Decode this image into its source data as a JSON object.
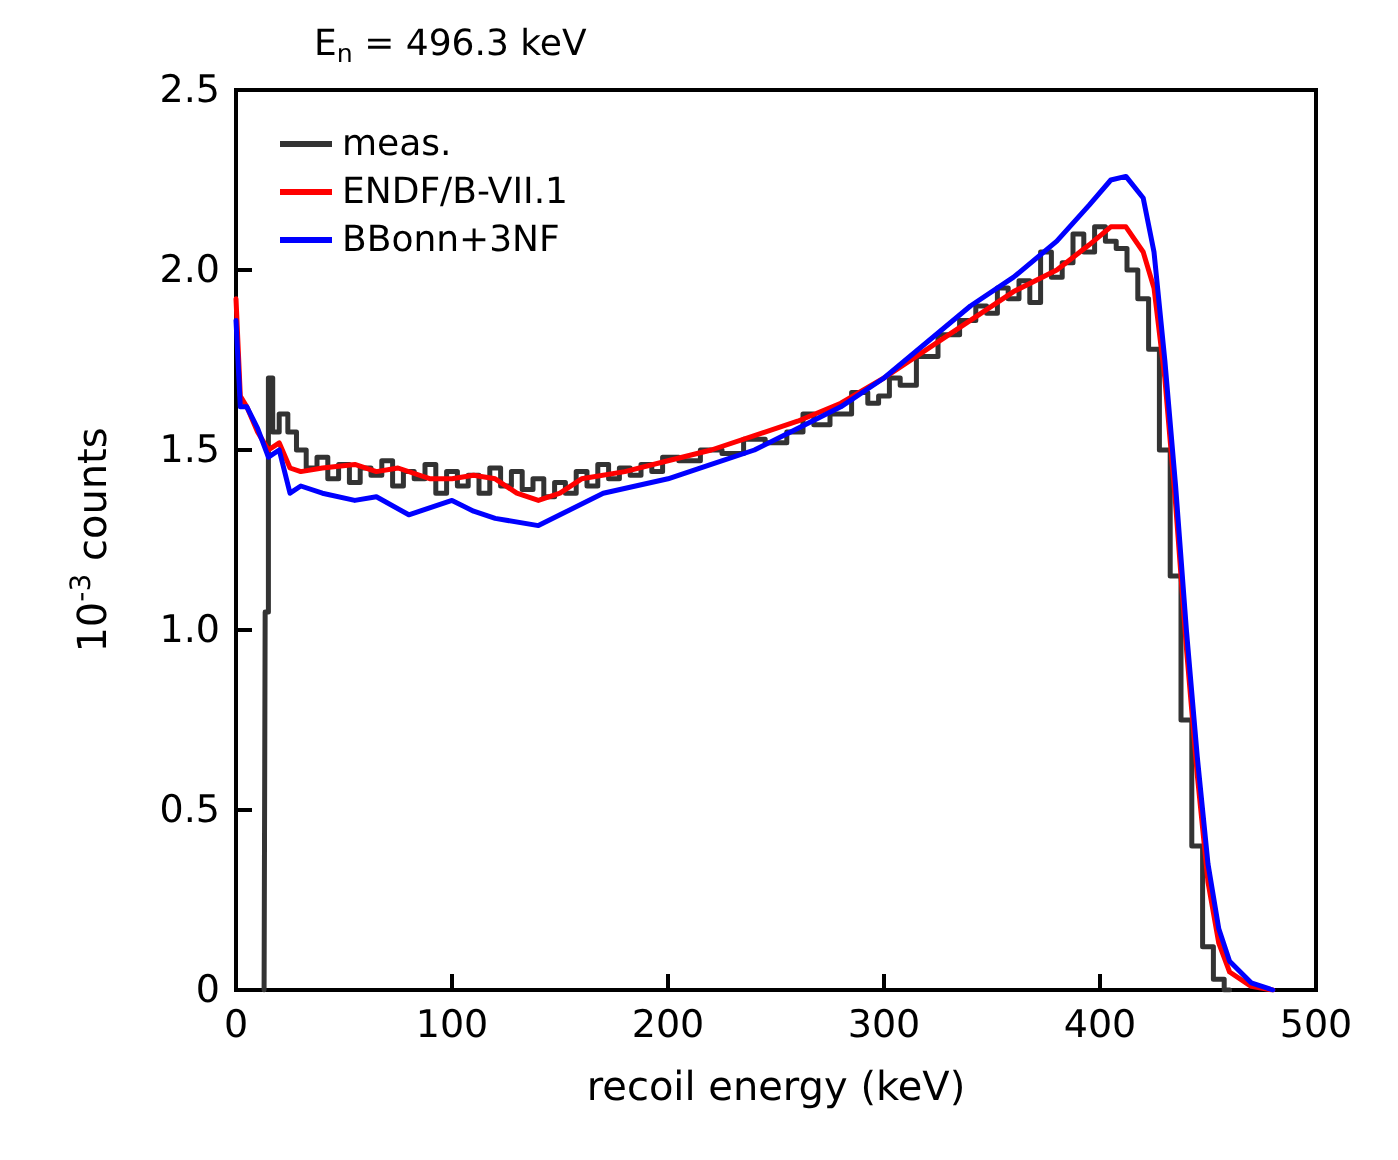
{
  "chart_data": {
    "type": "line",
    "title": "E$_{n}$ = 496.3 keV",
    "xlabel": "recoil energy (keV)",
    "ylabel": "10$^{-3}$ counts",
    "xlim": [
      0,
      500
    ],
    "xticks": [
      0,
      100,
      200,
      300,
      400,
      500
    ],
    "ylim": [
      0,
      2.5
    ],
    "yticks": [
      0,
      {
        "value": 0.5,
        "label": "0.5"
      },
      {
        "value": 1,
        "label": "1.0"
      },
      {
        "value": 1.5,
        "label": "1.5"
      },
      {
        "value": 2,
        "label": "2.0"
      },
      {
        "value": 2.5,
        "label": "2.5"
      }
    ],
    "grid": false,
    "legend": "top left",
    "marker": "none",
    "line_style": "solid",
    "series": [
      {
        "name": "meas.",
        "type": "step",
        "color": "#333333",
        "x": [
          13,
          14,
          16,
          18,
          22,
          26,
          30,
          35,
          40,
          45,
          50,
          55,
          60,
          65,
          70,
          75,
          80,
          85,
          90,
          95,
          100,
          105,
          110,
          115,
          120,
          125,
          130,
          135,
          140,
          145,
          150,
          155,
          160,
          165,
          170,
          175,
          180,
          185,
          190,
          195,
          200,
          210,
          220,
          230,
          240,
          250,
          260,
          265,
          270,
          280,
          290,
          295,
          300,
          305,
          310,
          320,
          330,
          340,
          345,
          350,
          355,
          360,
          365,
          370,
          375,
          380,
          385,
          390,
          395,
          400,
          405,
          410,
          415,
          420,
          425,
          430,
          435,
          440,
          445,
          450,
          455,
          460
        ],
        "values": [
          0,
          1.05,
          1.7,
          1.55,
          1.6,
          1.55,
          1.5,
          1.45,
          1.48,
          1.42,
          1.46,
          1.41,
          1.45,
          1.43,
          1.47,
          1.4,
          1.44,
          1.42,
          1.46,
          1.38,
          1.44,
          1.4,
          1.43,
          1.38,
          1.45,
          1.4,
          1.44,
          1.39,
          1.42,
          1.37,
          1.41,
          1.38,
          1.44,
          1.4,
          1.46,
          1.42,
          1.45,
          1.43,
          1.46,
          1.44,
          1.48,
          1.47,
          1.5,
          1.49,
          1.53,
          1.52,
          1.55,
          1.6,
          1.57,
          1.6,
          1.66,
          1.63,
          1.65,
          1.7,
          1.68,
          1.76,
          1.82,
          1.86,
          1.9,
          1.88,
          1.95,
          1.92,
          1.97,
          1.91,
          2.05,
          1.98,
          2.02,
          2.1,
          2.05,
          2.12,
          2.08,
          2.06,
          2.0,
          1.92,
          1.78,
          1.5,
          1.15,
          0.75,
          0.4,
          0.12,
          0.03,
          0
        ]
      },
      {
        "name": "ENDF/B-VII.1",
        "color": "#ff0000",
        "x": [
          0,
          2,
          5,
          10,
          15,
          20,
          25,
          30,
          40,
          55,
          65,
          75,
          90,
          100,
          110,
          120,
          130,
          140,
          150,
          160,
          180,
          200,
          220,
          240,
          260,
          280,
          300,
          320,
          340,
          360,
          380,
          395,
          405,
          412,
          420,
          425,
          430,
          435,
          440,
          445,
          450,
          455,
          460,
          470,
          480
        ],
        "values": [
          1.92,
          1.65,
          1.62,
          1.55,
          1.5,
          1.52,
          1.45,
          1.44,
          1.45,
          1.46,
          1.44,
          1.45,
          1.42,
          1.42,
          1.43,
          1.42,
          1.38,
          1.36,
          1.38,
          1.42,
          1.44,
          1.47,
          1.5,
          1.54,
          1.58,
          1.63,
          1.7,
          1.78,
          1.86,
          1.94,
          2.0,
          2.07,
          2.12,
          2.12,
          2.05,
          1.95,
          1.7,
          1.35,
          0.95,
          0.6,
          0.3,
          0.13,
          0.05,
          0.01,
          0
        ]
      },
      {
        "name": "BBonn+3NF",
        "color": "#0000ff",
        "x": [
          0,
          2,
          5,
          10,
          15,
          20,
          25,
          30,
          40,
          55,
          65,
          80,
          100,
          110,
          120,
          140,
          150,
          170,
          200,
          220,
          240,
          260,
          280,
          300,
          320,
          340,
          360,
          380,
          395,
          405,
          412,
          420,
          425,
          430,
          435,
          440,
          445,
          450,
          455,
          460,
          470,
          480
        ],
        "values": [
          1.86,
          1.62,
          1.62,
          1.56,
          1.48,
          1.5,
          1.38,
          1.4,
          1.38,
          1.36,
          1.37,
          1.32,
          1.36,
          1.33,
          1.31,
          1.29,
          1.32,
          1.38,
          1.42,
          1.46,
          1.5,
          1.56,
          1.62,
          1.7,
          1.8,
          1.9,
          1.98,
          2.08,
          2.18,
          2.25,
          2.26,
          2.2,
          2.05,
          1.75,
          1.4,
          1.0,
          0.65,
          0.35,
          0.17,
          0.08,
          0.02,
          0
        ]
      }
    ]
  }
}
